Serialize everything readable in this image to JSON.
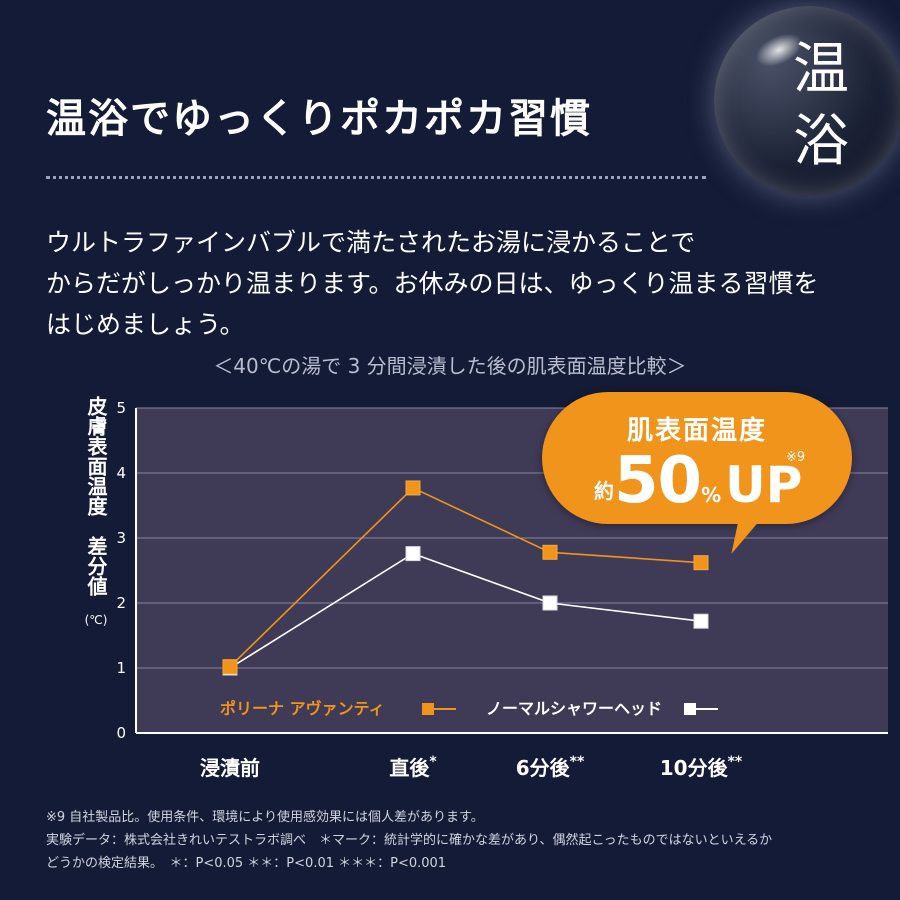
{
  "header": {
    "title": "温浴でゆっくりポカポカ習慣",
    "badge_text": "温浴"
  },
  "intro": {
    "lines": [
      "ウルトラファインバブルで満たされたお湯に浸かることで",
      "からだがしっかり温まります。お休みの日は、ゆっくり温まる習慣を",
      "はじめましょう。"
    ]
  },
  "callout": {
    "label": "肌表面温度",
    "prefix": "約",
    "value": "50",
    "percent": "%",
    "suffix": "UP",
    "note": "※9"
  },
  "colors": {
    "background": "#141b36",
    "plot_bg": "#3f3a56",
    "orange": "#f0941b",
    "white": "#ffffff"
  },
  "chart_data": {
    "type": "line",
    "title": "＜40℃の湯で 3 分間浸漬した後の肌表面温度比較＞",
    "ylabel": "皮膚表面温度　差分値",
    "yunit": "(℃)",
    "xlabel": "",
    "ylim": [
      0,
      5
    ],
    "yticks": [
      0,
      1,
      2,
      3,
      4,
      5
    ],
    "grid": true,
    "categories": [
      {
        "label": "浸漬前",
        "mark": ""
      },
      {
        "label": "直後",
        "mark": "*"
      },
      {
        "label": "6分後",
        "mark": "**"
      },
      {
        "label": "10分後",
        "mark": "**"
      }
    ],
    "series": [
      {
        "name": "ポリーナ アヴァンティ",
        "color": "#f0941b",
        "values": [
          1.02,
          3.77,
          2.78,
          2.62
        ]
      },
      {
        "name": "ノーマルシャワーヘッド",
        "color": "#ffffff",
        "values": [
          1.0,
          2.76,
          2.0,
          1.72
        ]
      }
    ],
    "legend_position": "bottom"
  },
  "footnotes": [
    "※9 自社製品比。使用条件、環境により使用感効果には個人差があります。",
    "実験データ：株式会社きれいテストラボ調べ　＊マーク：統計学的に確かな差があり、偶然起こったものではないといえるか",
    "どうかの検定結果。　＊：P<0.05 ＊＊：P<0.01 ＊＊＊：P<0.001"
  ]
}
